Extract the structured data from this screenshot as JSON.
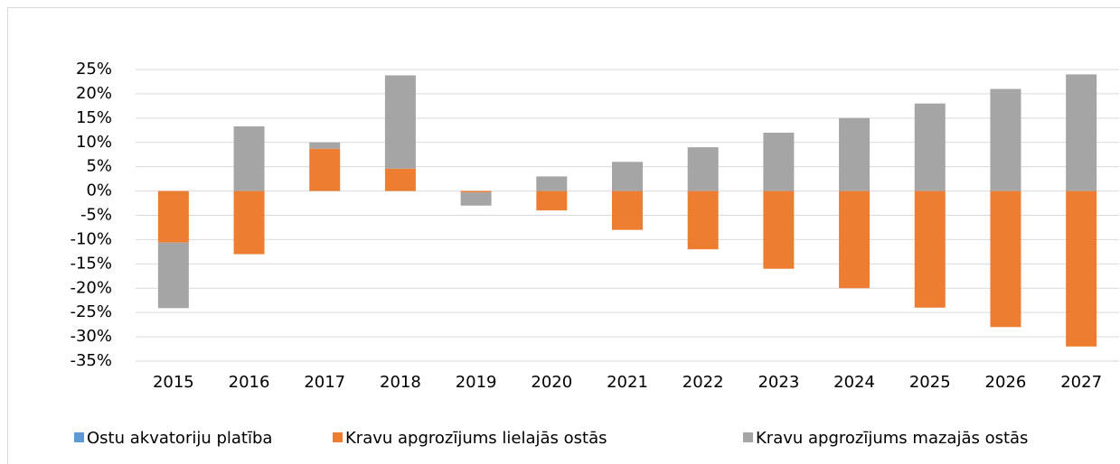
{
  "chart_data": {
    "type": "bar",
    "stacked": true,
    "categories": [
      "2015",
      "2016",
      "2017",
      "2018",
      "2019",
      "2020",
      "2021",
      "2022",
      "2023",
      "2024",
      "2025",
      "2026",
      "2027"
    ],
    "series": [
      {
        "name": "Ostu akvatoriju platība",
        "color": "#5b9bd5",
        "values": [
          0,
          0,
          0,
          0,
          0,
          0,
          0,
          0,
          0,
          0,
          0,
          0,
          0
        ]
      },
      {
        "name": "Kravu apgrozījums lielajās ostās",
        "color": "#ed7d31",
        "values": [
          -10.6,
          -13,
          8.7,
          4.6,
          -0.3,
          -4,
          -8,
          -12,
          -16,
          -20,
          -24,
          -28,
          -32
        ]
      },
      {
        "name": "Kravu apgrozījums mazajās ostās",
        "color": "#a5a5a5",
        "values": [
          -13.5,
          13.3,
          1.3,
          19.2,
          -2.7,
          3,
          6,
          9,
          12,
          15,
          18,
          21,
          24
        ]
      }
    ],
    "ylim": [
      -35,
      25
    ],
    "yticks": [
      {
        "value": -35,
        "label": "-35%"
      },
      {
        "value": -30,
        "label": "-30%"
      },
      {
        "value": -25,
        "label": "-25%"
      },
      {
        "value": -20,
        "label": "-20%"
      },
      {
        "value": -15,
        "label": "-15%"
      },
      {
        "value": -10,
        "label": "-10%"
      },
      {
        "value": -5,
        "label": "-5%"
      },
      {
        "value": 0,
        "label": "0%"
      },
      {
        "value": 5,
        "label": "5%"
      },
      {
        "value": 10,
        "label": "10%"
      },
      {
        "value": 15,
        "label": "15%"
      },
      {
        "value": 20,
        "label": "20%"
      },
      {
        "value": 25,
        "label": "25%"
      }
    ],
    "grid": true,
    "legend": "bottom"
  }
}
